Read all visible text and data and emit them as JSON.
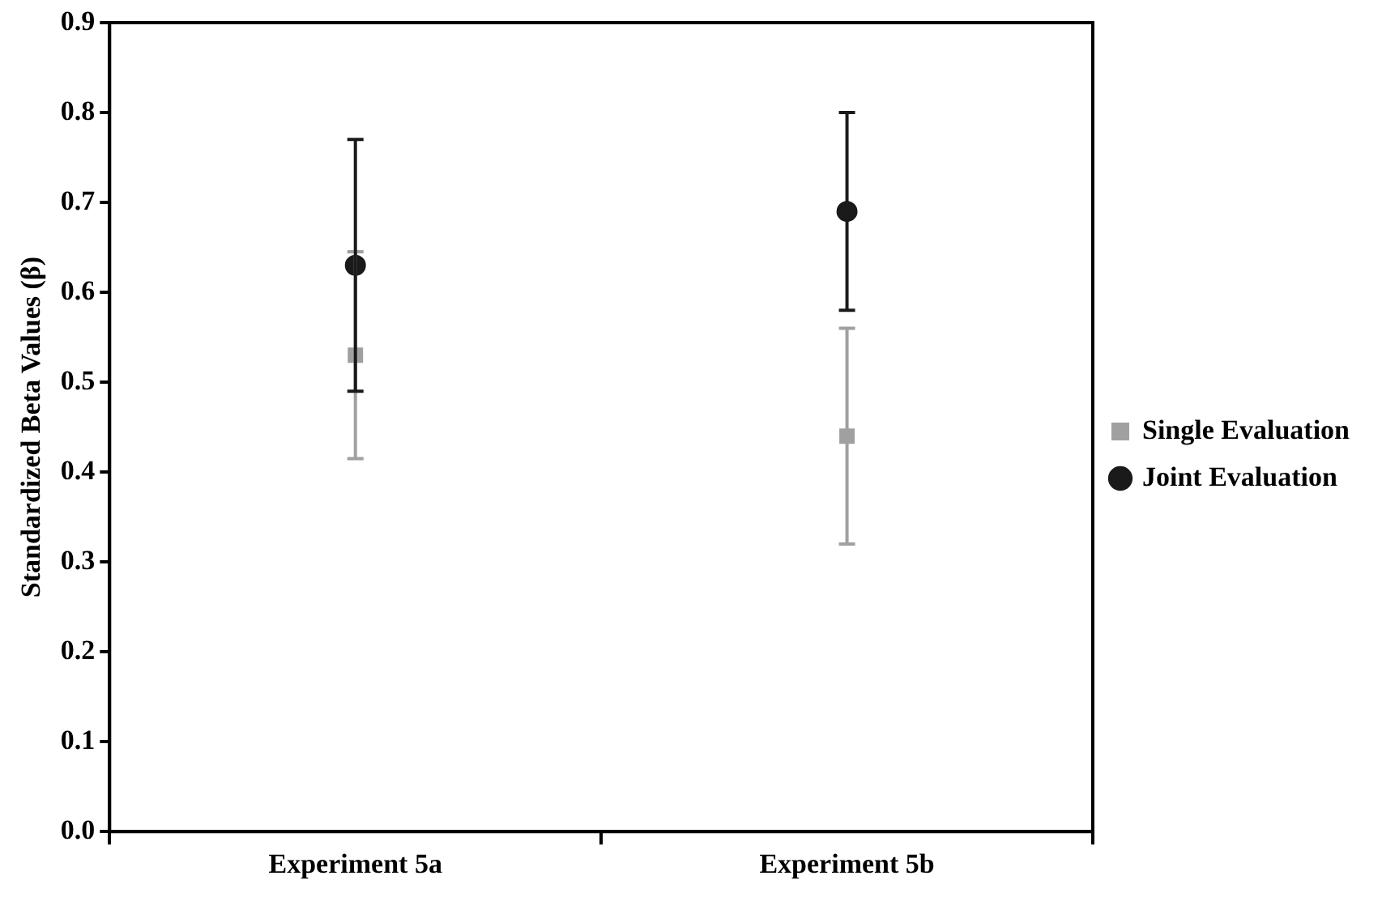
{
  "chart_data": {
    "type": "scatter",
    "ylabel": "Standardized Beta Values (β)",
    "categories": [
      "Experiment 5a",
      "Experiment 5b"
    ],
    "series": [
      {
        "name": "Single Evaluation",
        "color": "#a0a0a0",
        "marker": "square",
        "values": [
          0.53,
          0.44
        ],
        "errors": [
          [
            0.415,
            0.645
          ],
          [
            0.32,
            0.56
          ]
        ]
      },
      {
        "name": "Joint Evaluation",
        "color": "#1a1a1a",
        "marker": "circle",
        "values": [
          0.63,
          0.69
        ],
        "errors": [
          [
            0.49,
            0.77
          ],
          [
            0.58,
            0.8
          ]
        ]
      }
    ],
    "ylim": [
      0,
      0.9
    ],
    "yticks": [
      {
        "value": 0,
        "label": "0.0"
      },
      0.1,
      0.2,
      0.3,
      0.4,
      0.5,
      0.6,
      0.7,
      0.8,
      0.9
    ],
    "grid": false,
    "legend": "right"
  }
}
